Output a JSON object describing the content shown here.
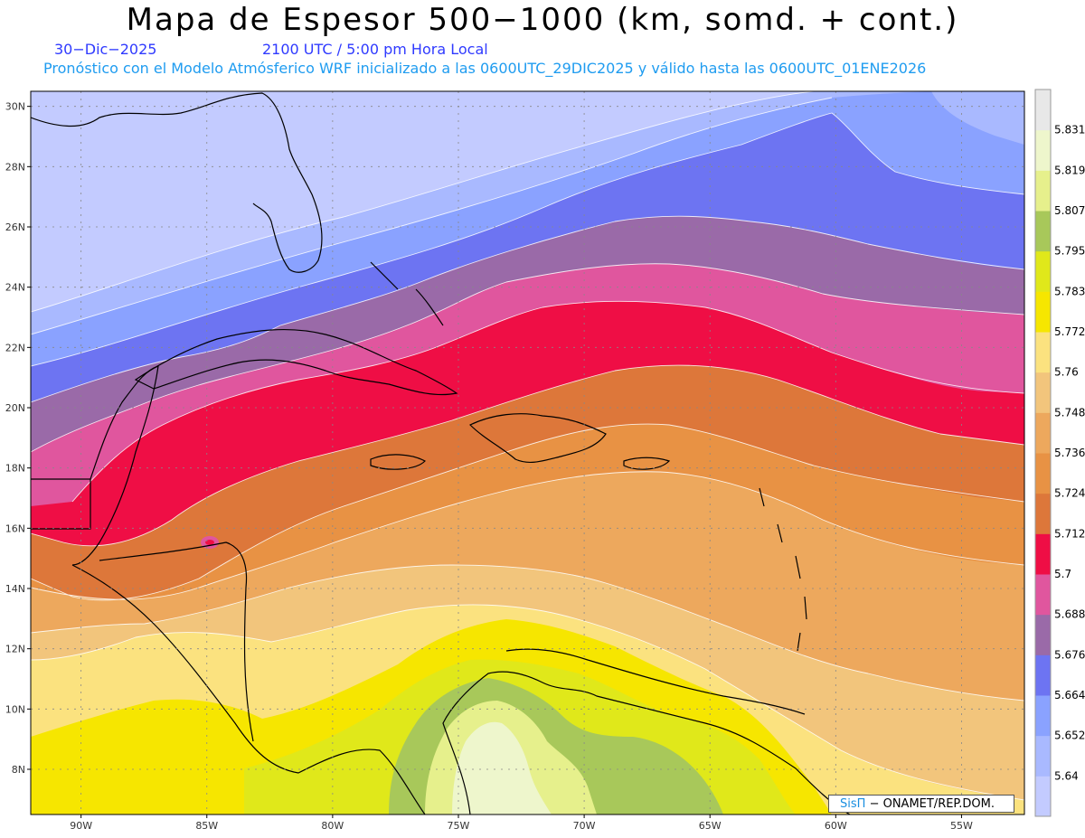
{
  "title": "Mapa de Espesor 500−1000 (km, somd. + cont.)",
  "subtitle": {
    "date": "30−Dic−2025",
    "time": "2100 UTC / 5:00 pm Hora Local",
    "description": "Pronóstico con el Modelo Atmósferico WRF inicializado a las 0600UTC_29DIC2025 y válido hasta las  0600UTC_01ENE2026"
  },
  "map": {
    "lon_range": [
      -92.0,
      -52.5
    ],
    "lat_range": [
      6.5,
      30.5
    ],
    "lon_ticks": [
      {
        "lon": -90,
        "label": "90W"
      },
      {
        "lon": -85,
        "label": "85W"
      },
      {
        "lon": -80,
        "label": "80W"
      },
      {
        "lon": -75,
        "label": "75W"
      },
      {
        "lon": -70,
        "label": "70W"
      },
      {
        "lon": -65,
        "label": "65W"
      },
      {
        "lon": -60,
        "label": "60W"
      },
      {
        "lon": -55,
        "label": "55W"
      }
    ],
    "lat_ticks": [
      {
        "lat": 30,
        "label": "30N"
      },
      {
        "lat": 28,
        "label": "28N"
      },
      {
        "lat": 26,
        "label": "26N"
      },
      {
        "lat": 24,
        "label": "24N"
      },
      {
        "lat": 22,
        "label": "22N"
      },
      {
        "lat": 20,
        "label": "20N"
      },
      {
        "lat": 18,
        "label": "18N"
      },
      {
        "lat": 16,
        "label": "16N"
      },
      {
        "lat": 14,
        "label": "14N"
      },
      {
        "lat": 12,
        "label": "12N"
      },
      {
        "lat": 10,
        "label": "10N"
      },
      {
        "lat": 8,
        "label": "8N"
      }
    ]
  },
  "colorbar": {
    "colors": [
      "#c3cbff",
      "#a9b9ff",
      "#8aa2ff",
      "#6d74f2",
      "#9a6aa8",
      "#e0569e",
      "#ef0e45",
      "#dd773a",
      "#e89244",
      "#eda85d",
      "#f2c57c",
      "#fbe27f",
      "#f6e600",
      "#e0e81a",
      "#a8c85a",
      "#e6f08c",
      "#eef6cc",
      "#e8e8e8"
    ],
    "labels": [
      "5.64",
      "5.652",
      "5.664",
      "5.676",
      "5.688",
      "5.7",
      "5.712",
      "5.724",
      "5.736",
      "5.748",
      "5.76",
      "5.772",
      "5.783",
      "5.795",
      "5.807",
      "5.819",
      "5.831"
    ]
  },
  "credit": {
    "brand": "SisΠ",
    "org": "− ONAMET/REP.DOM."
  }
}
